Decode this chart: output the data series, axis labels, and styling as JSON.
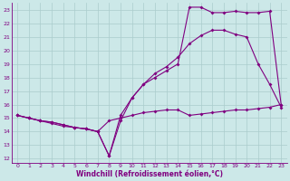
{
  "xlabel": "Windchill (Refroidissement éolien,°C)",
  "bg_color": "#cce8e8",
  "line_color": "#800080",
  "grid_color": "#aacccc",
  "xlim": [
    -0.5,
    23.5
  ],
  "ylim": [
    11.7,
    23.5
  ],
  "yticks": [
    12,
    13,
    14,
    15,
    16,
    17,
    18,
    19,
    20,
    21,
    22,
    23
  ],
  "xticks": [
    0,
    1,
    2,
    3,
    4,
    5,
    6,
    7,
    8,
    9,
    10,
    11,
    12,
    13,
    14,
    15,
    16,
    17,
    18,
    19,
    20,
    21,
    22,
    23
  ],
  "line1_x": [
    0,
    1,
    2,
    3,
    4,
    5,
    6,
    7,
    8,
    9,
    10,
    11,
    12,
    13,
    14,
    15,
    16,
    17,
    18,
    19,
    20,
    21,
    22,
    23
  ],
  "line1_y": [
    15.2,
    15.0,
    14.8,
    14.7,
    14.5,
    14.3,
    14.2,
    14.0,
    12.2,
    14.8,
    16.5,
    17.5,
    18.0,
    18.5,
    19.0,
    23.2,
    23.2,
    22.8,
    22.8,
    22.9,
    22.8,
    22.8,
    22.9,
    16.0
  ],
  "line2_x": [
    0,
    1,
    2,
    3,
    4,
    5,
    6,
    7,
    8,
    9,
    10,
    11,
    12,
    13,
    14,
    15,
    16,
    17,
    18,
    19,
    20,
    21,
    22,
    23
  ],
  "line2_y": [
    15.2,
    15.0,
    14.8,
    14.7,
    14.5,
    14.3,
    14.2,
    14.0,
    12.2,
    15.2,
    16.5,
    17.5,
    18.3,
    18.8,
    19.5,
    20.5,
    21.1,
    21.5,
    21.5,
    21.2,
    21.0,
    19.0,
    17.5,
    15.8
  ],
  "line3_x": [
    0,
    1,
    2,
    3,
    4,
    5,
    6,
    7,
    8,
    9,
    10,
    11,
    12,
    13,
    14,
    15,
    16,
    17,
    18,
    19,
    20,
    21,
    22,
    23
  ],
  "line3_y": [
    15.2,
    15.0,
    14.8,
    14.6,
    14.4,
    14.3,
    14.2,
    14.0,
    14.8,
    15.0,
    15.2,
    15.4,
    15.5,
    15.6,
    15.6,
    15.2,
    15.3,
    15.4,
    15.5,
    15.6,
    15.6,
    15.7,
    15.8,
    16.0
  ]
}
